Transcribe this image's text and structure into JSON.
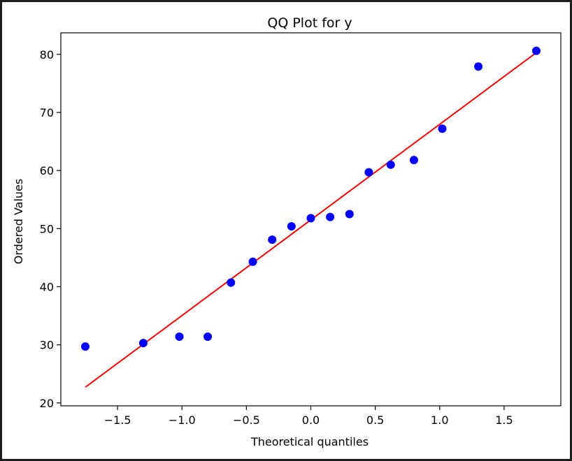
{
  "chart_data": {
    "type": "scatter",
    "title": "QQ Plot for y",
    "xlabel": "Theoretical quantiles",
    "ylabel": "Ordered Values",
    "xlim": [
      -1.94,
      1.94
    ],
    "ylim": [
      19.5,
      83.7
    ],
    "x_ticks": [
      -1.5,
      -1.0,
      -0.5,
      0.0,
      0.5,
      1.0,
      1.5
    ],
    "x_tick_labels": [
      "−1.5",
      "−1.0",
      "−0.5",
      "0.0",
      "0.5",
      "1.0",
      "1.5"
    ],
    "y_ticks": [
      20,
      30,
      40,
      50,
      60,
      70,
      80
    ],
    "y_tick_labels": [
      "20",
      "30",
      "40",
      "50",
      "60",
      "70",
      "80"
    ],
    "grid": false,
    "series": [
      {
        "kind": "points",
        "color": "#0000ff",
        "x": [
          -1.75,
          -1.3,
          -1.02,
          -0.8,
          -0.62,
          -0.45,
          -0.3,
          -0.15,
          0.0,
          0.15,
          0.3,
          0.45,
          0.62,
          0.8,
          1.02,
          1.3,
          1.75
        ],
        "y": [
          29.7,
          30.3,
          31.4,
          31.4,
          40.7,
          44.3,
          48.1,
          50.4,
          51.8,
          52.0,
          52.5,
          59.7,
          61.0,
          61.8,
          67.2,
          77.9,
          80.6
        ]
      },
      {
        "kind": "fit-line",
        "color": "#ff0000",
        "x": [
          -1.75,
          1.75
        ],
        "y": [
          22.7,
          80.3
        ]
      }
    ]
  }
}
